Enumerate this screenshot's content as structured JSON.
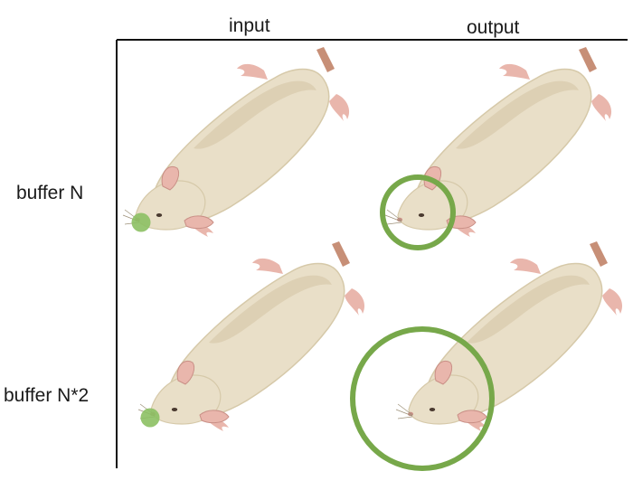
{
  "columns": {
    "input": "input",
    "output": "output"
  },
  "rows": {
    "row1": "buffer N",
    "row2": "buffer N*2"
  },
  "colors": {
    "body": "#e9dfc8",
    "body_shade": "#ddd0b4",
    "outline": "#cbbf9e",
    "pink": "#e9b6ac",
    "pink_dark": "#c98f86",
    "tail": "#c78f77",
    "green": "#77a84a",
    "green_fill": "#8cc063",
    "axis": "#111111"
  }
}
